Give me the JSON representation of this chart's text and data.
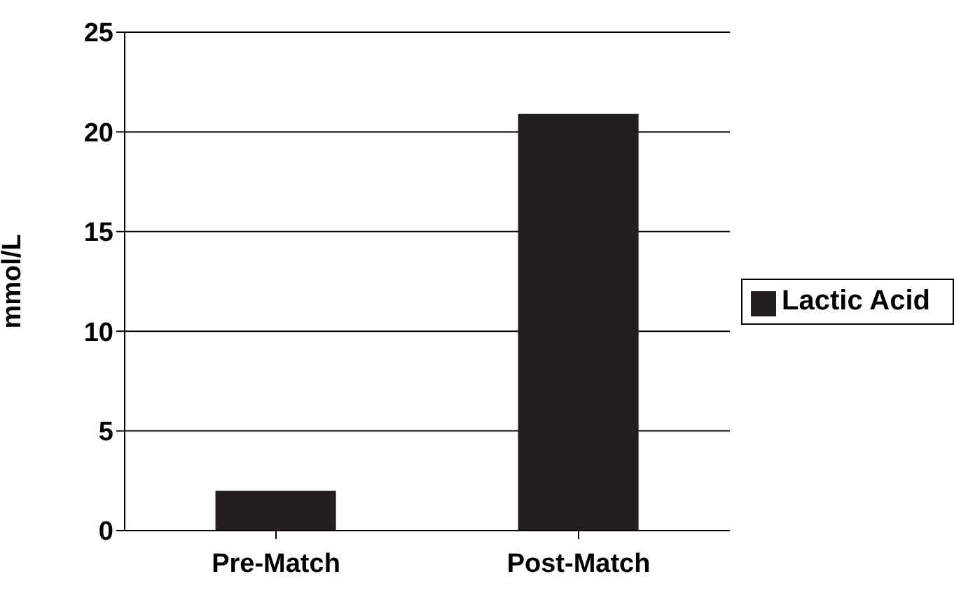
{
  "chart_data": {
    "type": "bar",
    "ylabel": "mmol/L",
    "categories": [
      "Pre-Match",
      "Post-Match"
    ],
    "series": [
      {
        "name": "Lactic Acid",
        "color": "#231f20",
        "values": [
          2,
          20.9
        ]
      }
    ],
    "ylim": [
      0,
      25
    ],
    "yticks": [
      0,
      5,
      10,
      15,
      20,
      25
    ],
    "grid": "y",
    "legend": "right"
  }
}
